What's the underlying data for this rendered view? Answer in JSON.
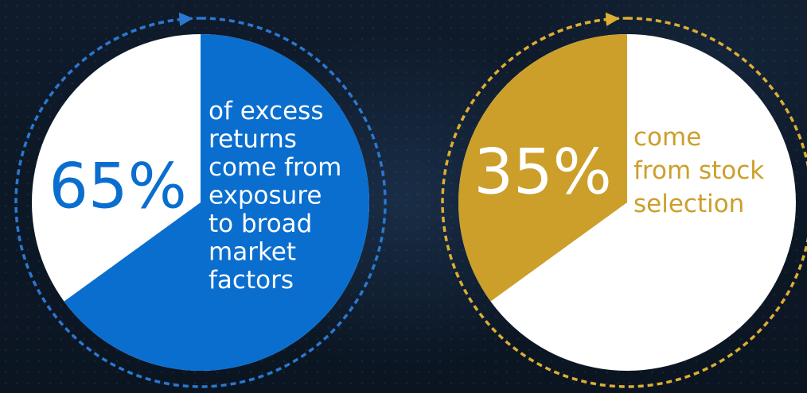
{
  "chart_data": [
    {
      "type": "pie",
      "value": 65,
      "remainder": 35,
      "percent_label": "65%",
      "caption_lines": [
        "of excess",
        "returns",
        "come from",
        "exposure",
        "to broad",
        "market",
        "factors"
      ],
      "colors": {
        "slice": "#0a6ecf",
        "rest": "#ffffff",
        "ring": "#2a78d0",
        "percent_text": "#0a6ecf",
        "caption_text": "#ffffff"
      }
    },
    {
      "type": "pie",
      "value": 35,
      "remainder": 65,
      "percent_label": "35%",
      "caption_lines": [
        "come",
        "from stock",
        "selection"
      ],
      "colors": {
        "slice": "#cc9f2b",
        "rest": "#ffffff",
        "ring": "#dcae34",
        "percent_text": "#ffffff",
        "caption_text": "#cc9f2b"
      }
    }
  ]
}
